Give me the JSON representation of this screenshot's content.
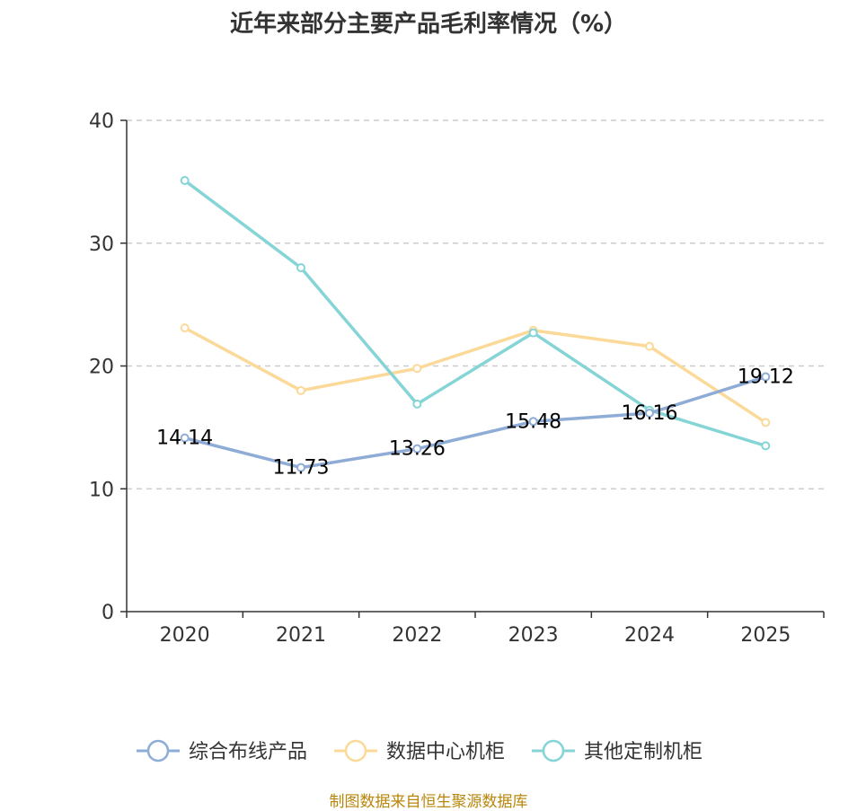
{
  "chart_data": {
    "type": "line",
    "title": "近年来部分主要产品毛利率情况（%）",
    "categories": [
      "2020",
      "2021",
      "2022",
      "2023",
      "2024",
      "2025"
    ],
    "ylim": [
      0,
      40
    ],
    "yticks": [
      0,
      10,
      20,
      30,
      40
    ],
    "grid": true,
    "legend_position": "bottom",
    "series": [
      {
        "name": "综合布线产品",
        "color": "#8eacd6",
        "values": [
          14.14,
          11.73,
          13.26,
          15.48,
          16.16,
          19.12
        ],
        "show_labels": true
      },
      {
        "name": "数据中心机柜",
        "color": "#fbd999",
        "values": [
          23.1,
          18.0,
          19.8,
          22.9,
          21.6,
          15.4
        ],
        "show_labels": false
      },
      {
        "name": "其他定制机柜",
        "color": "#85d4d6",
        "values": [
          35.1,
          28.0,
          16.9,
          22.7,
          16.4,
          13.5
        ],
        "show_labels": false
      }
    ]
  },
  "source_text": "制图数据来自恒生聚源数据库"
}
